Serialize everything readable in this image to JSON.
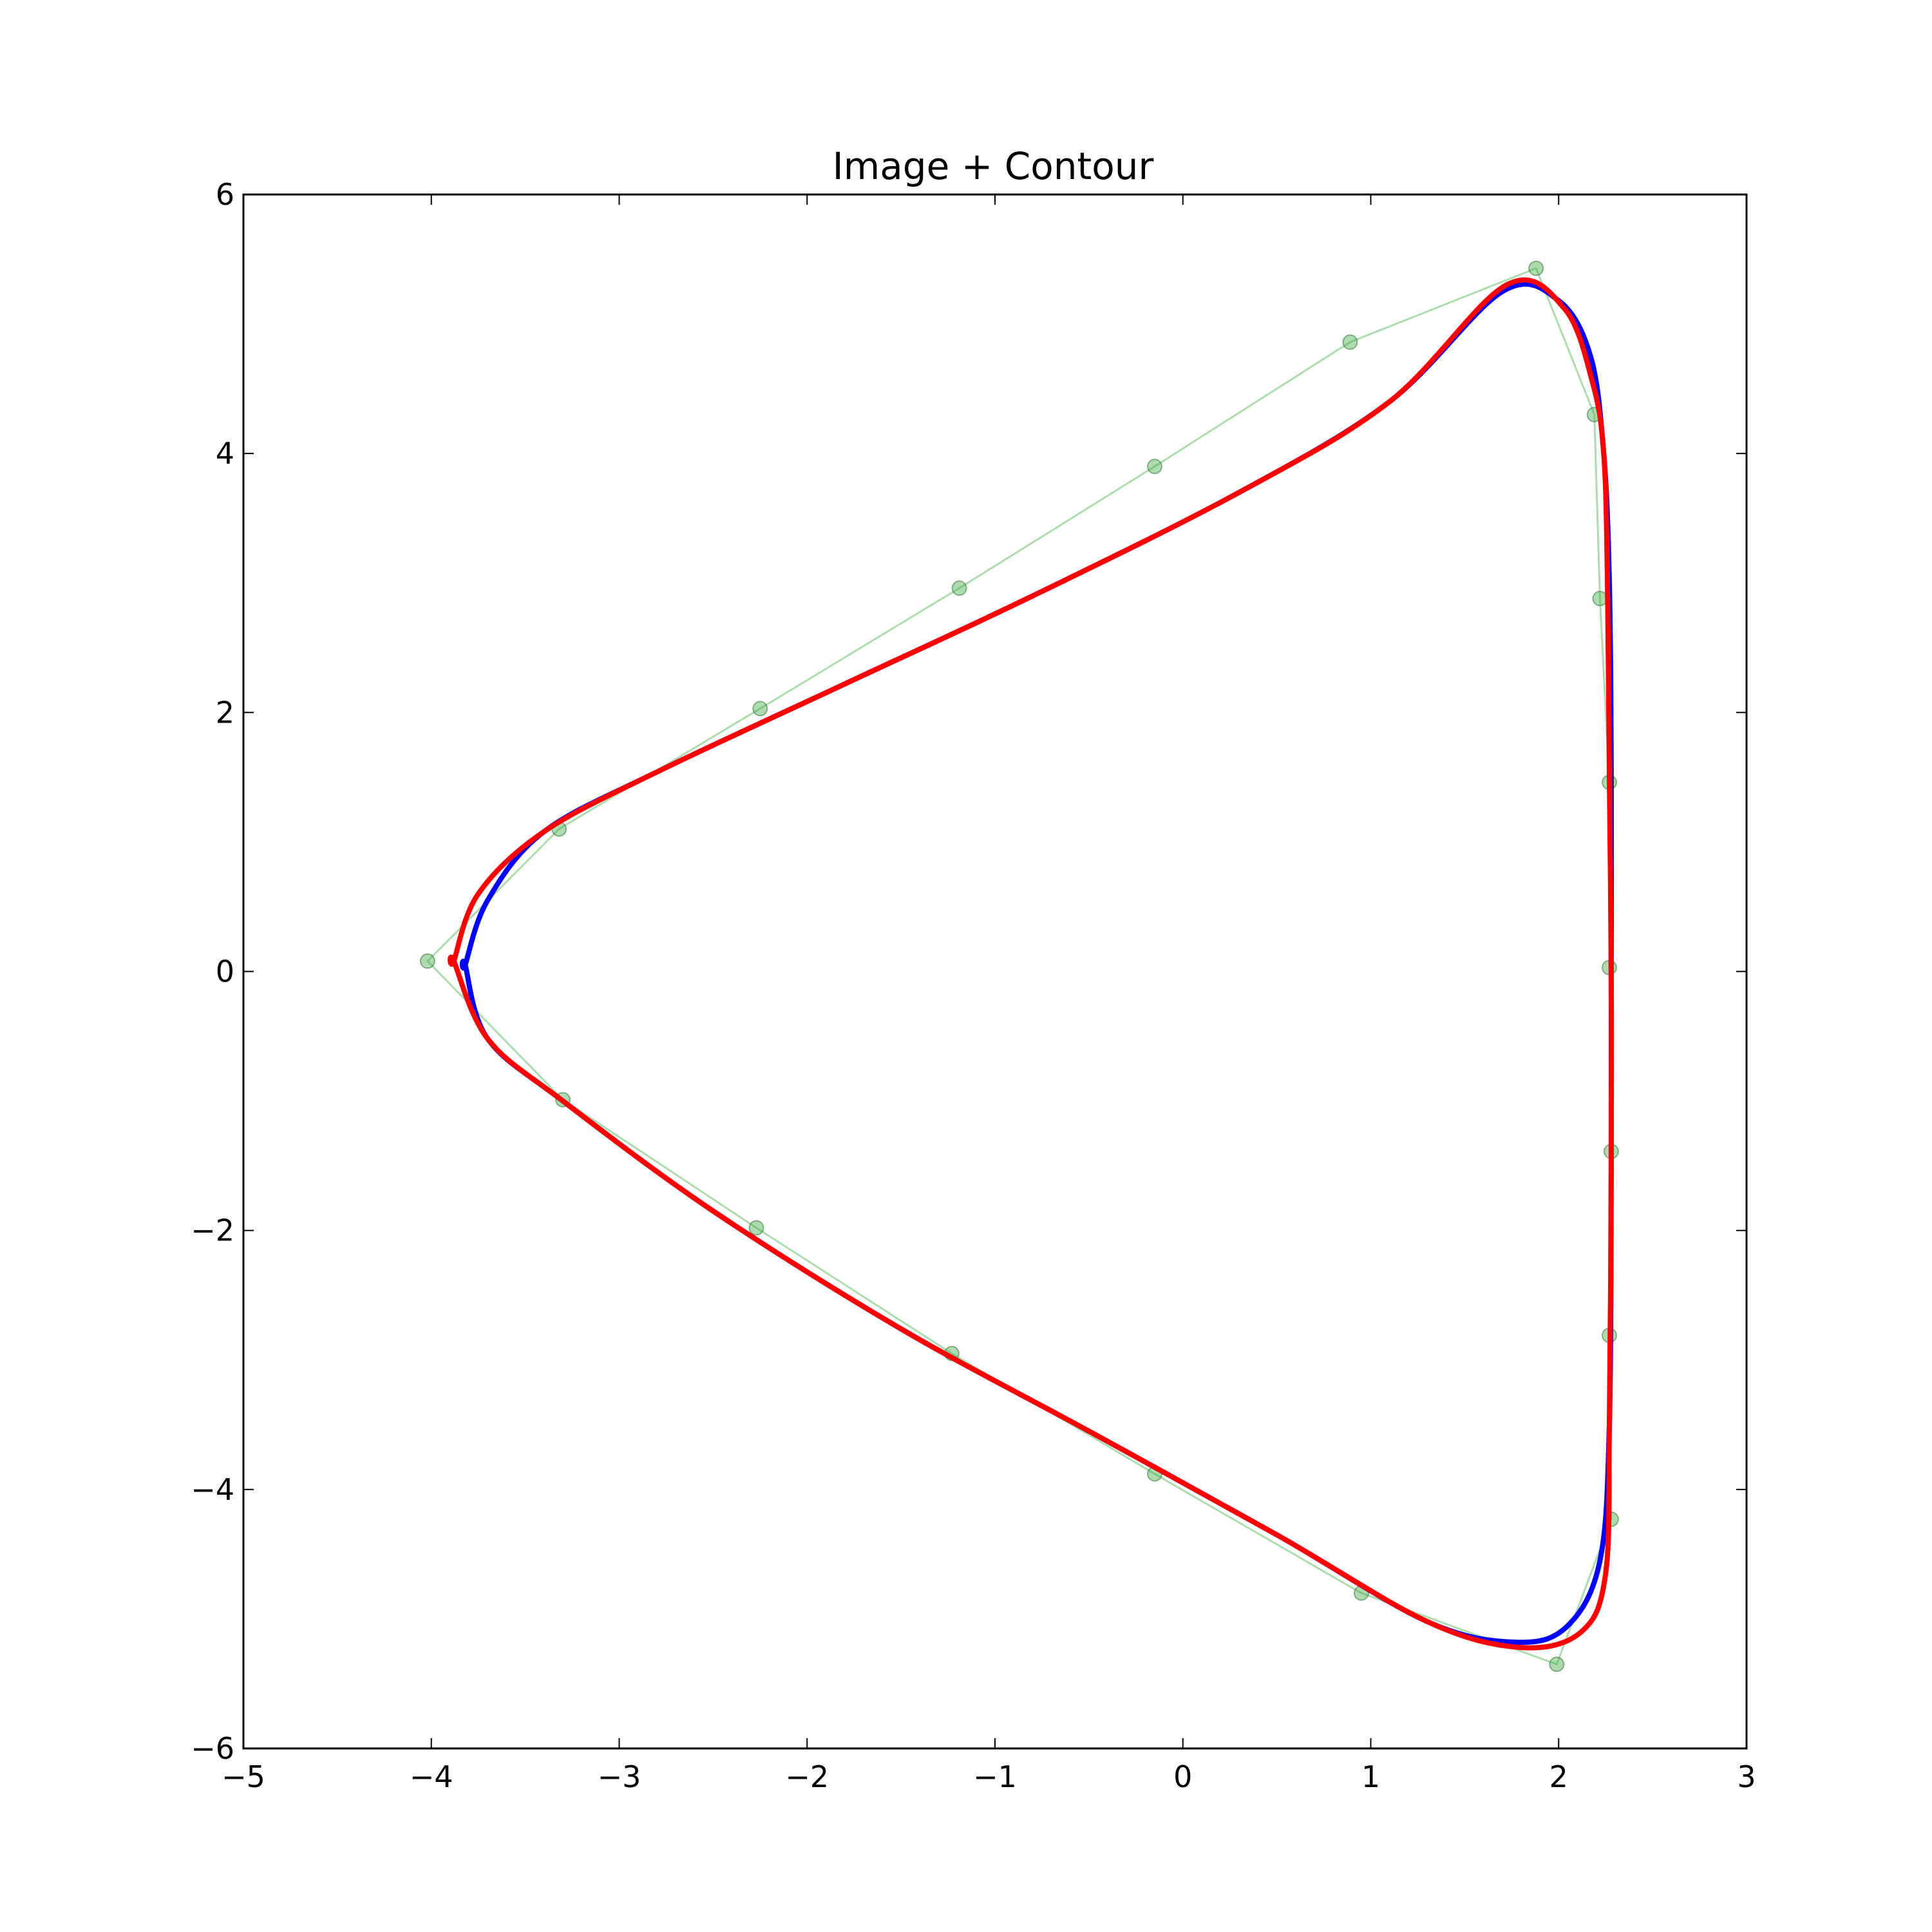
{
  "chart_data": {
    "type": "line",
    "title": "Image + Contour",
    "xlabel": "",
    "ylabel": "",
    "xlim": [
      -5,
      3
    ],
    "ylim": [
      -6,
      6
    ],
    "xticks": [
      -5,
      -4,
      -3,
      -2,
      -1,
      0,
      1,
      2,
      3
    ],
    "yticks": [
      -6,
      -4,
      -2,
      0,
      2,
      4,
      6
    ],
    "xtick_labels": [
      "−5",
      "−4",
      "−3",
      "−2",
      "−1",
      "0",
      "1",
      "2",
      "3"
    ],
    "ytick_labels": [
      "−6",
      "−4",
      "−2",
      "0",
      "2",
      "4",
      "6"
    ],
    "grid": false,
    "legend": false,
    "control_points": {
      "color": "#4caf50",
      "x": [
        -4.02,
        -3.32,
        -2.25,
        -1.19,
        -0.15,
        0.89,
        1.88,
        2.19,
        2.22,
        2.27,
        2.27,
        2.28,
        2.27,
        2.28,
        1.99,
        0.95,
        -0.15,
        -1.23,
        -2.27,
        -3.3
      ],
      "y": [
        0.08,
        1.1,
        2.03,
        2.96,
        3.9,
        4.86,
        5.43,
        4.3,
        2.88,
        1.46,
        0.03,
        -1.39,
        -2.81,
        -4.23,
        -5.35,
        -4.8,
        -3.88,
        -2.95,
        -1.98,
        -0.99
      ]
    },
    "series": [
      {
        "color": "#0000ff",
        "x": [
          -3.82,
          -3.7,
          -3.4,
          -2.8,
          -1.8,
          -0.8,
          0.3,
          1.1,
          1.7,
          2.0,
          2.17,
          2.24,
          2.27,
          2.28,
          2.28,
          2.28,
          2.27,
          2.22,
          2.05,
          1.78,
          1.3,
          0.5,
          -0.5,
          -1.5,
          -2.5,
          -3.3,
          -3.7,
          -3.82
        ],
        "y": [
          0.05,
          0.55,
          1.08,
          1.54,
          2.22,
          2.9,
          3.7,
          4.4,
          5.25,
          5.18,
          4.75,
          4.0,
          3.0,
          1.5,
          0.0,
          -1.5,
          -3.5,
          -4.55,
          -5.05,
          -5.18,
          -5.02,
          -4.35,
          -3.55,
          -2.76,
          -1.85,
          -1.0,
          -0.52,
          0.05
        ]
      },
      {
        "color": "#ff0000",
        "x": [
          -3.88,
          -3.75,
          -3.4,
          -2.8,
          -1.8,
          -0.8,
          0.3,
          1.1,
          1.72,
          2.03,
          2.18,
          2.24,
          2.26,
          2.27,
          2.28,
          2.28,
          2.27,
          2.25,
          2.12,
          1.8,
          1.3,
          0.5,
          -0.5,
          -1.5,
          -2.5,
          -3.3,
          -3.7,
          -3.88
        ],
        "y": [
          0.08,
          0.6,
          1.08,
          1.54,
          2.22,
          2.9,
          3.7,
          4.4,
          5.3,
          5.12,
          4.55,
          4.0,
          3.0,
          1.5,
          0.0,
          -1.5,
          -3.5,
          -4.65,
          -5.1,
          -5.22,
          -5.02,
          -4.35,
          -3.55,
          -2.76,
          -1.85,
          -1.0,
          -0.52,
          0.08
        ]
      }
    ]
  }
}
